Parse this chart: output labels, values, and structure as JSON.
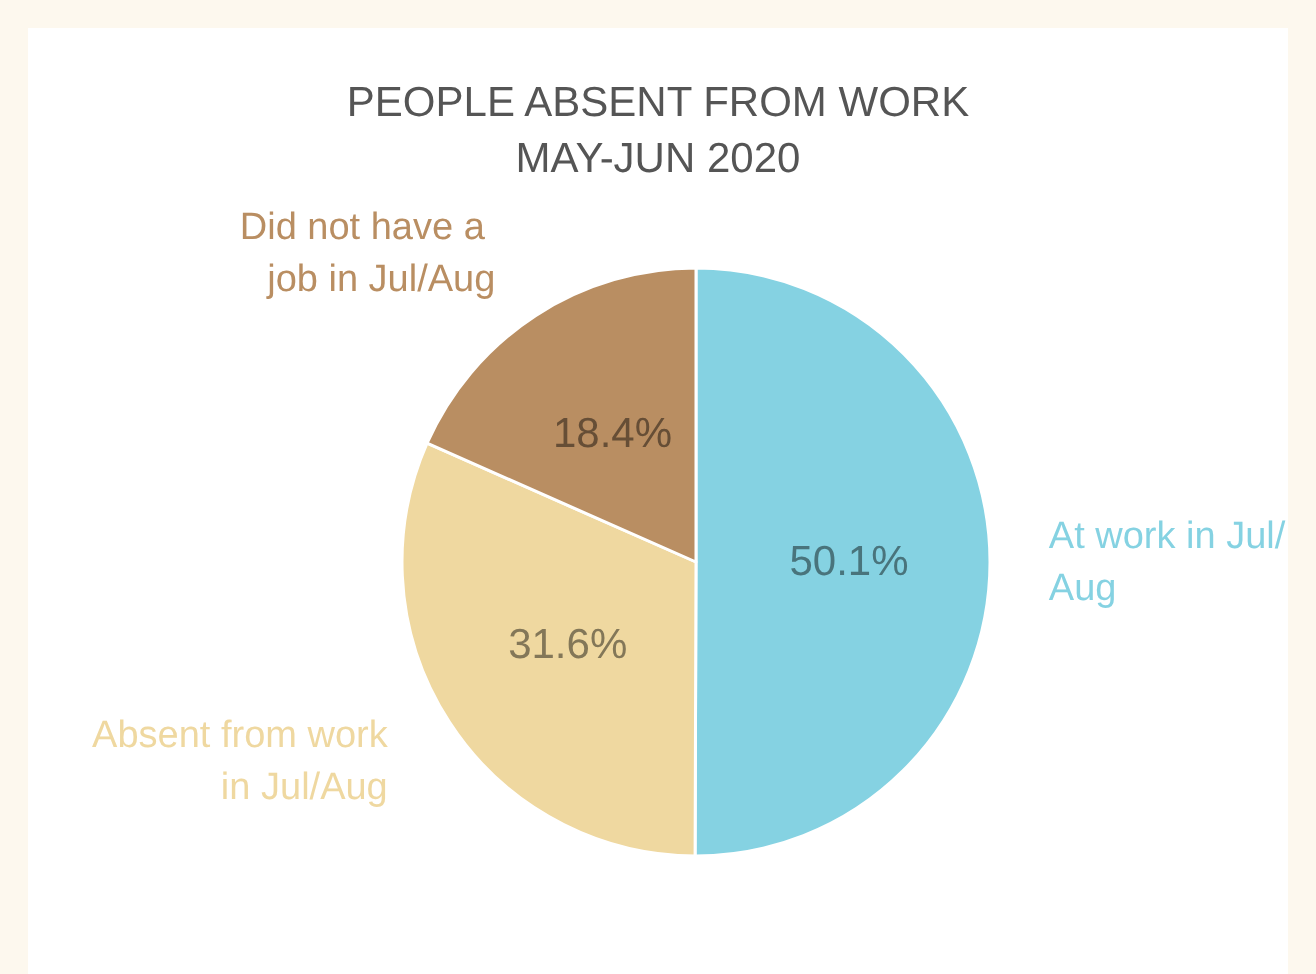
{
  "chart_data": {
    "type": "pie",
    "title": "PEOPLE ABSENT FROM WORK",
    "subtitle": "MAY-JUN 2020",
    "categories": [
      "At work in Jul/Aug",
      "Absent from work in Jul/Aug",
      "Did not have a job in Jul/Aug"
    ],
    "values": [
      50.1,
      31.6,
      18.4
    ],
    "value_labels": [
      "50.1%",
      "31.6%",
      "18.4%"
    ],
    "colors": [
      "#85d2e2",
      "#efd8a0",
      "#b98e62"
    ],
    "legend": false
  }
}
